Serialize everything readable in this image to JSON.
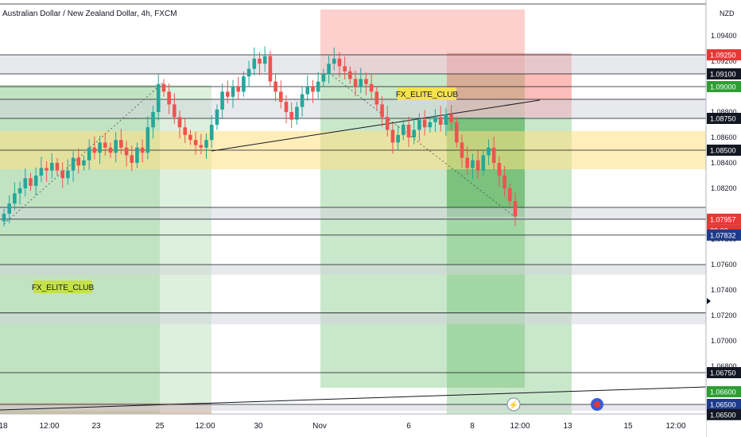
{
  "header": {
    "symbol_title": "Australian Dollar / New Zealand Dollar, 4h, FXCM",
    "currency": "NZD"
  },
  "annotations": {
    "label_left": "FX_ELITE_CLUB",
    "label_right": "FX_ELITE_CLUB"
  },
  "price_scale": {
    "ticks": [
      "1.09400",
      "1.09200",
      "1.08800",
      "1.08600",
      "1.08400",
      "1.08200",
      "1.07800",
      "1.07600",
      "1.07400",
      "1.07200",
      "1.07000",
      "1.06800",
      "1.06400"
    ],
    "badges": [
      {
        "text": "1.09250",
        "color": "#e53935",
        "level": 1.0925
      },
      {
        "text": "1.09100",
        "color": "#131722",
        "level": 1.091
      },
      {
        "text": "1.09000",
        "color": "#2e9e34",
        "level": 1.09
      },
      {
        "text": "1.08750",
        "color": "#131722",
        "level": 1.0875
      },
      {
        "text": "1.08500",
        "color": "#131722",
        "level": 1.085
      },
      {
        "text": "1.07957",
        "color": "#e53935",
        "level": 1.07957
      },
      {
        "text": "29:00",
        "color": "#e53935",
        "level": 1.0787
      },
      {
        "text": "1.07832",
        "color": "#1e3a8a",
        "level": 1.07832
      },
      {
        "text": "1.06750",
        "color": "#131722",
        "level": 1.0675
      },
      {
        "text": "1.06600",
        "color": "#2e9e34",
        "level": 1.066
      },
      {
        "text": "1.06500",
        "color": "#1e3a8a",
        "level": 1.065
      },
      {
        "text": "1.06500",
        "color": "#131722",
        "level": 1.0642
      }
    ]
  },
  "time_axis": {
    "labels": [
      "18",
      "12:00",
      "23",
      "25",
      "12:00",
      "30",
      "Nov",
      "6",
      "8",
      "12:00",
      "13",
      "15",
      "12:00"
    ]
  },
  "colors": {
    "up": "#26a69a",
    "down": "#ef5350",
    "zone_green": "#4caf50",
    "zone_red": "#f44336",
    "zone_yellow": "#ffe082",
    "zone_grey": "#d1d4dc"
  },
  "chart_data": {
    "type": "candlestick",
    "symbol": "AUDNZD",
    "timeframe": "4h",
    "ylim": [
      1.064,
      1.096
    ],
    "horizontal_levels": [
      1.0925,
      1.091,
      1.09,
      1.089,
      1.0875,
      1.085,
      1.0805,
      1.07957,
      1.07832,
      1.076,
      1.0722,
      1.0675,
      1.065
    ],
    "shaded_levels": [
      [
        1.091,
        1.0925
      ],
      [
        1.0875,
        1.089
      ],
      [
        1.0795,
        1.0805
      ],
      [
        1.0752,
        1.076
      ],
      [
        1.0713,
        1.0722
      ],
      [
        1.0645,
        1.065
      ]
    ],
    "yellow_zone": [
      1.0835,
      1.0865
    ],
    "close_series": [
      1.08,
      1.0808,
      1.0816,
      1.082,
      1.0828,
      1.0822,
      1.083,
      1.0836,
      1.0834,
      1.084,
      1.0834,
      1.0828,
      1.0834,
      1.0844,
      1.0838,
      1.0842,
      1.0852,
      1.0848,
      1.0856,
      1.0852,
      1.0848,
      1.0858,
      1.0852,
      1.0846,
      1.084,
      1.0852,
      1.0848,
      1.0868,
      1.088,
      1.0902,
      1.0896,
      1.0886,
      1.0876,
      1.0868,
      1.0862,
      1.0858,
      1.0854,
      1.0852,
      1.0858,
      1.087,
      1.0882,
      1.0896,
      1.0892,
      1.09,
      1.0896,
      1.0908,
      1.0914,
      1.0922,
      1.0918,
      1.0924,
      1.0904,
      1.0896,
      1.0888,
      1.088,
      1.0874,
      1.0884,
      1.0894,
      1.09,
      1.0896,
      1.0904,
      1.091,
      1.0918,
      1.0922,
      1.0916,
      1.0912,
      1.0906,
      1.09,
      1.0906,
      1.0902,
      1.0896,
      1.0886,
      1.0876,
      1.0866,
      1.0856,
      1.0862,
      1.087,
      1.086,
      1.0866,
      1.0874,
      1.0868,
      1.0872,
      1.0876,
      1.087,
      1.0878,
      1.0872,
      1.0856,
      1.0844,
      1.0836,
      1.0842,
      1.0834,
      1.0846,
      1.0852,
      1.084,
      1.083,
      1.082,
      1.081,
      1.0798
    ]
  }
}
